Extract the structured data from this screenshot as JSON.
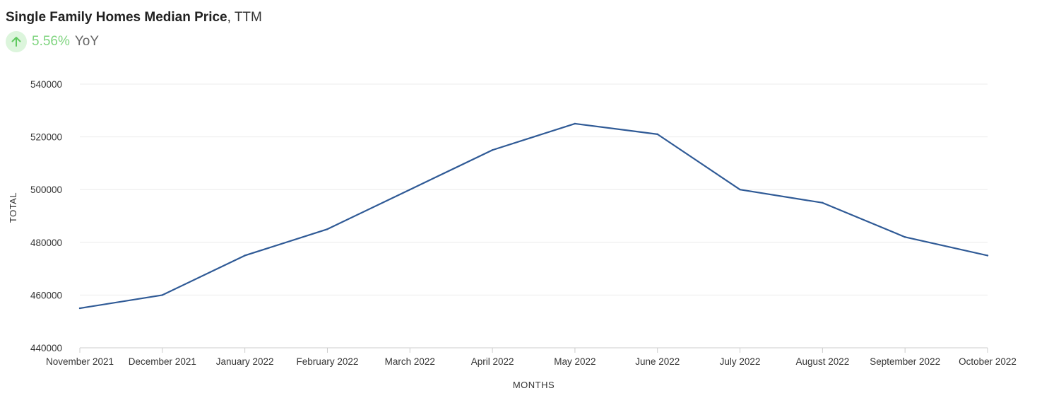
{
  "header": {
    "title": "Single Family Homes Median Price",
    "title_separator": ",",
    "title_suffix": "TTM",
    "yoy_value": "5.56%",
    "yoy_label": "YoY",
    "yoy_icon": "arrow-up-icon",
    "yoy_color": "#7fd47f",
    "yoy_icon_bg": "#dcf5dc"
  },
  "chart_data": {
    "type": "line",
    "title": "Single Family Homes Median Price, TTM",
    "xlabel": "MONTHS",
    "ylabel": "TOTAL",
    "ylim": [
      440000,
      540000
    ],
    "yticks": [
      440000,
      460000,
      480000,
      500000,
      520000,
      540000
    ],
    "grid": true,
    "line_color": "#2f5a96",
    "categories": [
      "November 2021",
      "December 2021",
      "January 2022",
      "February 2022",
      "March 2022",
      "April 2022",
      "May 2022",
      "June 2022",
      "July 2022",
      "August 2022",
      "September 2022",
      "October 2022"
    ],
    "series": [
      {
        "values": [
          455000,
          460000,
          475000,
          485000,
          500000,
          515000,
          525000,
          521000,
          500000,
          495000,
          482000,
          475000
        ]
      }
    ]
  }
}
